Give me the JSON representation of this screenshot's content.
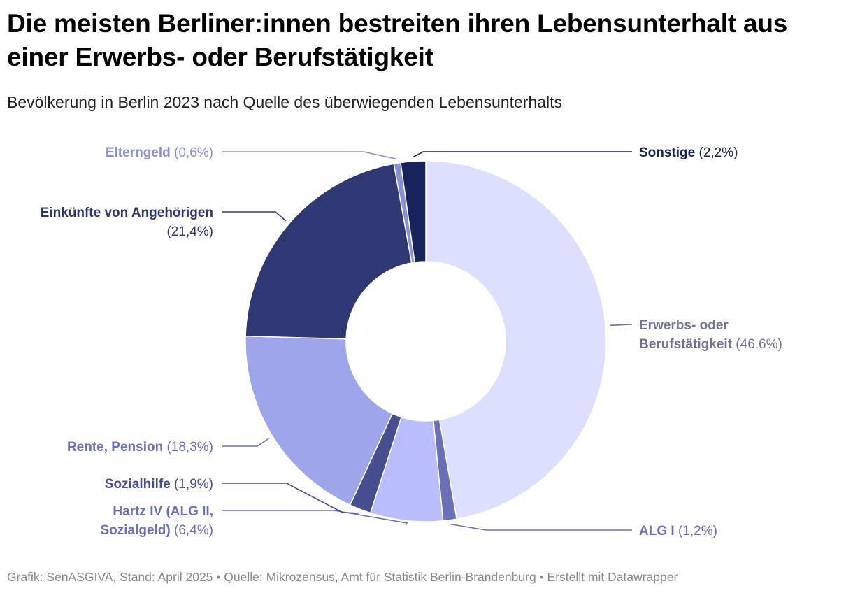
{
  "header": {
    "title": "Die meisten Berliner:innen bestreiten ihren Lebensunterhalt aus einer Erwerbs- oder Berufstätigkeit",
    "subtitle": "Bevölkerung in Berlin 2023 nach Quelle des überwiegenden Lebensunterhalts"
  },
  "chart_data": {
    "type": "pie",
    "variant": "donut",
    "title": "Die meisten Berliner:innen bestreiten ihren Lebensunterhalt aus einer Erwerbs- oder Berufstätigkeit",
    "subtitle": "Bevölkerung in Berlin 2023 nach Quelle des überwiegenden Lebensunterhalts",
    "unit": "%",
    "slices": [
      {
        "name": "Erwerbs- oder Berufstätigkeit",
        "value": 46.6,
        "value_label": "(46,6%)",
        "color": "#dcdffe",
        "label_color": "#717595"
      },
      {
        "name": "ALG I",
        "value": 1.2,
        "value_label": "(1,2%)",
        "color": "#6a70b8",
        "label_color": "#6a70b8"
      },
      {
        "name": "Hartz IV (ALG II, Sozialgeld)",
        "value": 6.4,
        "value_label": "(6,4%)",
        "color": "#b9befb",
        "label_color": "#6a70b8"
      },
      {
        "name": "Sozialhilfe",
        "value": 1.9,
        "value_label": "(1,9%)",
        "color": "#474e8f",
        "label_color": "#474e8f"
      },
      {
        "name": "Rente, Pension",
        "value": 18.3,
        "value_label": "(18,3%)",
        "color": "#9fa5ea",
        "label_color": "#6a70b8"
      },
      {
        "name": "Einkünfte von Angehörigen",
        "value": 21.4,
        "value_label": "(21,4%)",
        "color": "#2f3873",
        "label_color": "#2f3873"
      },
      {
        "name": "Elterngeld",
        "value": 0.6,
        "value_label": "(0,6%)",
        "color": "#8a90d8",
        "label_color": "#8a90d8"
      },
      {
        "name": "Sonstige",
        "value": 2.2,
        "value_label": "(2,2%)",
        "color": "#17245c",
        "label_color": "#17245c"
      }
    ]
  },
  "footer": {
    "text": "Grafik: SenASGIVA, Stand: April 2025 • Quelle: Mikrozensus, Amt für Statistik Berlin-Brandenburg • Erstellt mit Datawrapper"
  }
}
